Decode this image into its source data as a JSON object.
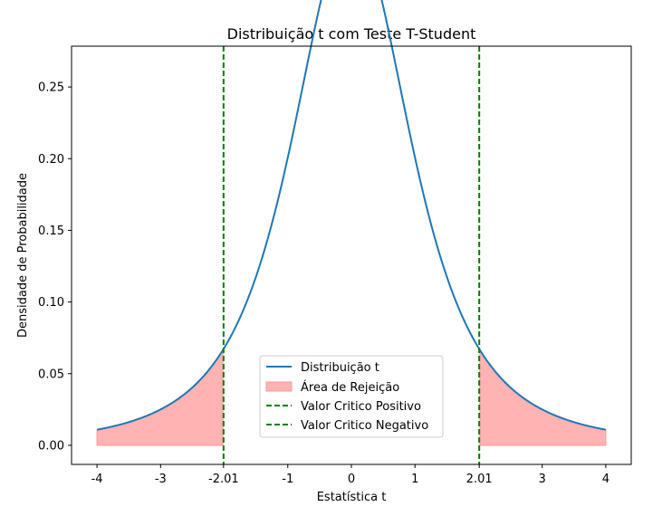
{
  "chart_data": {
    "type": "line",
    "title": "Distribuição t com Teste T-Student",
    "xlabel": "Estatística t",
    "ylabel": "Densidade de Probabilidade",
    "xlim": [
      -4.4,
      4.4
    ],
    "ylim": [
      -0.0133,
      0.2785
    ],
    "df": 2.5,
    "x_ticks": [
      -4,
      -3,
      -2.01,
      -1,
      0,
      1,
      2.01,
      3,
      4
    ],
    "x_tick_labels": [
      "-4",
      "-3",
      "-2.01",
      "-1",
      "0",
      "1",
      "2.01",
      "3",
      "4"
    ],
    "y_ticks": [
      0.0,
      0.05,
      0.1,
      0.15,
      0.2,
      0.25
    ],
    "y_tick_labels": [
      "0.00",
      "0.05",
      "0.10",
      "0.15",
      "0.20",
      "0.25"
    ],
    "x_range": [
      -4,
      4
    ],
    "critical_values": {
      "negative": -2.01,
      "positive": 2.01
    },
    "series": [
      {
        "name": "Distribuição t",
        "kind": "line",
        "color": "#1f77b4"
      },
      {
        "name": "Área de Rejeição",
        "kind": "fill",
        "color": "#ff9999"
      },
      {
        "name": "Valor Critico Positivo",
        "kind": "vline",
        "value": 2.01,
        "color": "#008000"
      },
      {
        "name": "Valor Critico Negativo",
        "kind": "vline",
        "value": -2.01,
        "color": "#008000"
      }
    ],
    "legend_position": "lower-center"
  }
}
